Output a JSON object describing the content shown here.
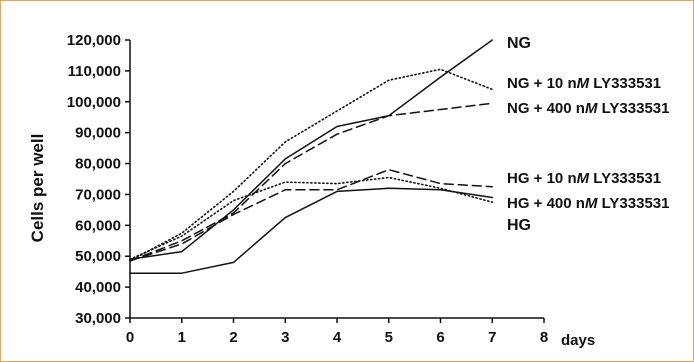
{
  "colors": {
    "border": "#e8a35c",
    "line": "#111111",
    "axis": "#111111",
    "background": "#ffffff"
  },
  "chart_data": {
    "type": "line",
    "title": "",
    "xlabel": "days",
    "ylabel": "Cells per well",
    "xlim": [
      0,
      8
    ],
    "ylim": [
      30000,
      120000
    ],
    "x_ticks": [
      0,
      1,
      2,
      3,
      4,
      5,
      6,
      7,
      8
    ],
    "x_tick_labels": [
      "0",
      "1",
      "2",
      "3",
      "4",
      "5",
      "6",
      "7",
      "8"
    ],
    "y_ticks": [
      30000,
      40000,
      50000,
      60000,
      70000,
      80000,
      90000,
      100000,
      110000,
      120000
    ],
    "y_tick_labels": [
      "30,000",
      "40,000",
      "50,000",
      "60,000",
      "70,000",
      "80,000",
      "90,000",
      "100,000",
      "110,000",
      "120,000"
    ],
    "grid": false,
    "legend": "inline labels at right end of lines",
    "x": [
      0,
      1,
      2,
      3,
      4,
      5,
      6,
      7
    ],
    "series": [
      {
        "name": "NG",
        "label_parts": [
          {
            "text": "NG",
            "italic": false
          }
        ],
        "style": "solid",
        "values": [
          49000,
          51500,
          65000,
          81500,
          92000,
          95500,
          108000,
          120000
        ]
      },
      {
        "name": "NG + 10 nM LY333531",
        "label_parts": [
          {
            "text": "NG + 10 n",
            "italic": false
          },
          {
            "text": "M",
            "italic": true
          },
          {
            "text": " LY333531",
            "italic": false
          }
        ],
        "style": "dotted",
        "values": [
          48500,
          57500,
          71000,
          87000,
          97000,
          107000,
          110500,
          104000
        ]
      },
      {
        "name": "NG + 400 nM LY333531",
        "label_parts": [
          {
            "text": "NG + 400 n",
            "italic": false
          },
          {
            "text": "M",
            "italic": true
          },
          {
            "text": " LY333531",
            "italic": false
          }
        ],
        "style": "dashed",
        "values": [
          48500,
          55000,
          64000,
          80000,
          89500,
          95500,
          97500,
          99500
        ]
      },
      {
        "name": "HG + 10 nM LY333531",
        "label_parts": [
          {
            "text": "HG + 10 n",
            "italic": false
          },
          {
            "text": "M",
            "italic": true
          },
          {
            "text": " LY333531",
            "italic": false
          }
        ],
        "style": "dotted",
        "values": [
          49000,
          56500,
          68000,
          74000,
          73500,
          75500,
          72000,
          67500
        ]
      },
      {
        "name": "HG + 400 nM LY333531",
        "label_parts": [
          {
            "text": "HG + 400 n",
            "italic": false
          },
          {
            "text": "M",
            "italic": true
          },
          {
            "text": " LY333531",
            "italic": false
          }
        ],
        "style": "dashed",
        "values": [
          48500,
          54000,
          63500,
          71500,
          71500,
          78000,
          73500,
          72500
        ]
      },
      {
        "name": "HG",
        "label_parts": [
          {
            "text": "HG",
            "italic": false
          }
        ],
        "style": "solid",
        "values": [
          44500,
          44500,
          48000,
          62500,
          71000,
          72000,
          71500,
          69000
        ]
      }
    ]
  }
}
